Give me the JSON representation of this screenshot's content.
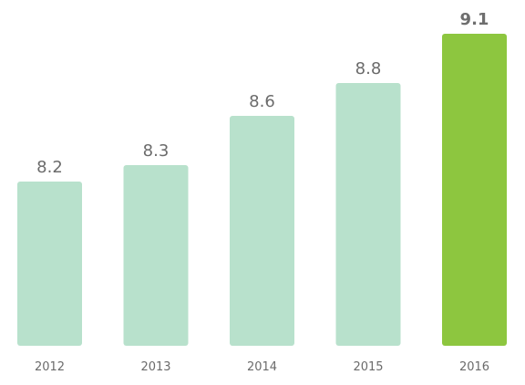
{
  "chart_data": {
    "type": "bar",
    "categories": [
      "2012",
      "2013",
      "2014",
      "2015",
      "2016"
    ],
    "values": [
      8.2,
      8.3,
      8.6,
      8.8,
      9.1
    ],
    "value_labels": [
      "8.2",
      "8.3",
      "8.6",
      "8.8",
      "9.1"
    ],
    "highlight_index": 4,
    "colors": {
      "bar": "#b8e1cc",
      "highlight": "#8dc63f"
    },
    "grid": false,
    "legend": "none"
  }
}
